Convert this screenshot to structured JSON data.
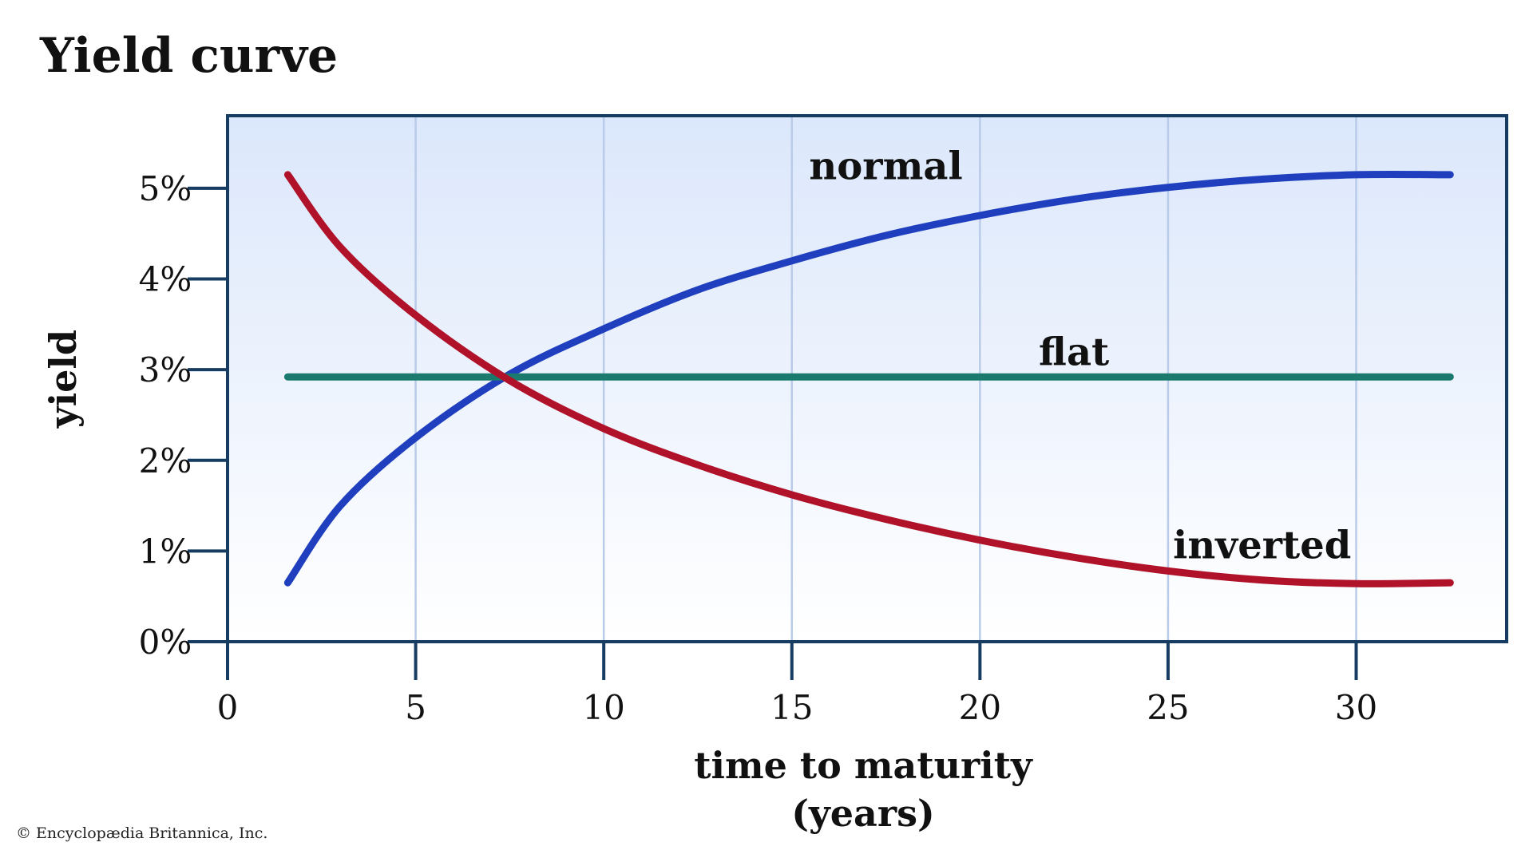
{
  "chart_data": {
    "type": "line",
    "title": "Yield curve",
    "xlabel_lines": [
      "time to maturity",
      "(years)"
    ],
    "ylabel": "yield",
    "xlim": [
      0,
      34
    ],
    "ylim": [
      0,
      5.8
    ],
    "x_ticks": [
      0,
      5,
      10,
      15,
      20,
      25,
      30
    ],
    "x_tick_labels": [
      "0",
      "5",
      "10",
      "15",
      "20",
      "25",
      "30"
    ],
    "y_ticks": [
      0,
      1,
      2,
      3,
      4,
      5
    ],
    "y_tick_labels": [
      "0%",
      "1%",
      "2%",
      "3%",
      "4%",
      "5%"
    ],
    "grid": "vertical",
    "series": [
      {
        "name": "normal",
        "color": "#1f3fbf",
        "x": [
          1.6,
          3,
          5,
          7.5,
          10,
          12.5,
          15,
          17.5,
          20,
          22.5,
          25,
          27.5,
          30,
          32.5
        ],
        "values": [
          0.65,
          1.5,
          2.25,
          2.95,
          3.45,
          3.88,
          4.2,
          4.48,
          4.7,
          4.88,
          5.01,
          5.1,
          5.15,
          5.15
        ]
      },
      {
        "name": "flat",
        "color": "#1a7a6e",
        "x": [
          1.6,
          32.5
        ],
        "values": [
          2.92,
          2.92
        ]
      },
      {
        "name": "inverted",
        "color": "#b0122a",
        "x": [
          1.6,
          3,
          5,
          7.5,
          10,
          12.5,
          15,
          17.5,
          20,
          22.5,
          25,
          27.5,
          30,
          32.5
        ],
        "values": [
          5.15,
          4.35,
          3.6,
          2.88,
          2.35,
          1.95,
          1.62,
          1.35,
          1.12,
          0.93,
          0.78,
          0.68,
          0.64,
          0.65
        ]
      }
    ]
  },
  "credit": "© Encyclopædia Britannica, Inc."
}
